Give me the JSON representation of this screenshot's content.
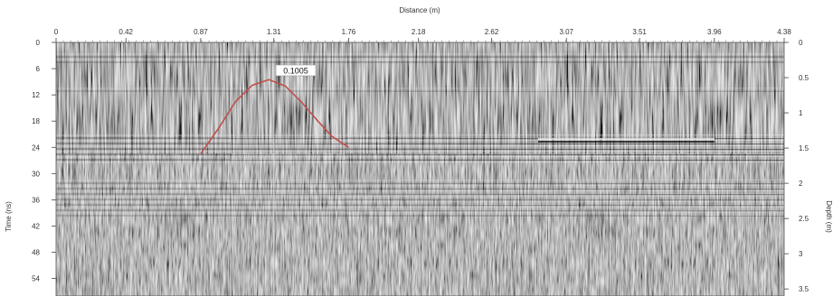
{
  "chart_data": {
    "type": "gpr-radargram",
    "xlabel": "Distance (m)",
    "ylabel_left": "Time (ns)",
    "ylabel_right": "Depth (m)",
    "x_range": [
      0,
      4.38
    ],
    "y_left_range": [
      0,
      58
    ],
    "y_right_range": [
      0,
      3.6
    ],
    "x_ticks": [
      "0",
      "0.42",
      "0.87",
      "1.31",
      "1.76",
      "2.18",
      "2.62",
      "3.07",
      "3.51",
      "3.96",
      "4.38"
    ],
    "y_left_ticks": [
      "0",
      "6",
      "12",
      "18",
      "24",
      "30",
      "36",
      "42",
      "48",
      "54"
    ],
    "y_right_ticks": [
      "0",
      "0.5",
      "1",
      "1.5",
      "2",
      "2.5",
      "3",
      "3.5"
    ],
    "hyperbola_fit": {
      "label": "0.1005",
      "apex_distance_m": 1.28,
      "apex_time_ns": 8.5,
      "color": "#c0504d",
      "points": [
        {
          "x": 0.87,
          "y": 25.5
        },
        {
          "x": 0.98,
          "y": 19.5
        },
        {
          "x": 1.08,
          "y": 13.5
        },
        {
          "x": 1.18,
          "y": 9.8
        },
        {
          "x": 1.28,
          "y": 8.5
        },
        {
          "x": 1.38,
          "y": 10.0
        },
        {
          "x": 1.48,
          "y": 13.8
        },
        {
          "x": 1.58,
          "y": 18.2
        },
        {
          "x": 1.66,
          "y": 21.5
        },
        {
          "x": 1.76,
          "y": 24.0
        }
      ]
    },
    "vertical_marker_distance_m": 1.31
  }
}
